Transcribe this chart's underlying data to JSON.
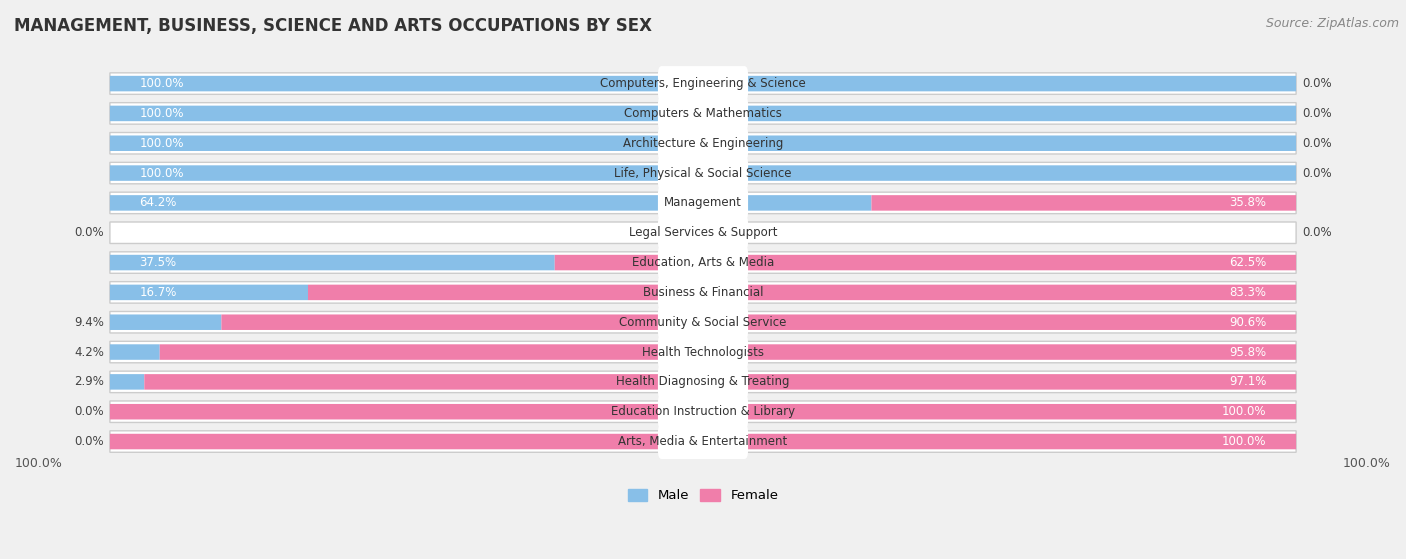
{
  "title": "MANAGEMENT, BUSINESS, SCIENCE AND ARTS OCCUPATIONS BY SEX",
  "source": "Source: ZipAtlas.com",
  "categories": [
    "Computers, Engineering & Science",
    "Computers & Mathematics",
    "Architecture & Engineering",
    "Life, Physical & Social Science",
    "Management",
    "Legal Services & Support",
    "Education, Arts & Media",
    "Business & Financial",
    "Community & Social Service",
    "Health Technologists",
    "Health Diagnosing & Treating",
    "Education Instruction & Library",
    "Arts, Media & Entertainment"
  ],
  "male_values": [
    100.0,
    100.0,
    100.0,
    100.0,
    64.2,
    0.0,
    37.5,
    16.7,
    9.4,
    4.2,
    2.9,
    0.0,
    0.0
  ],
  "female_values": [
    0.0,
    0.0,
    0.0,
    0.0,
    35.8,
    0.0,
    62.5,
    83.3,
    90.6,
    95.8,
    97.1,
    100.0,
    100.0
  ],
  "male_color": "#88BFE8",
  "female_color": "#F07EAA",
  "male_label": "Male",
  "female_label": "Female",
  "bg_color": "#F0F0F0",
  "row_bg_color": "#E0E0E0",
  "bar_bg_color": "#FFFFFF",
  "title_fontsize": 12,
  "label_fontsize": 8.5,
  "tick_fontsize": 9,
  "source_fontsize": 9,
  "bottom_left_label": "100.0%",
  "bottom_right_label": "100.0%"
}
